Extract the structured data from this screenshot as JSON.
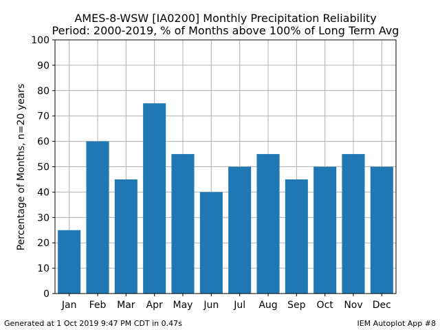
{
  "chart_data": {
    "type": "bar",
    "title": "AMES-8-WSW [IA0200] Monthly Precipitation Reliability",
    "subtitle": "Period: 2000-2019, % of Months above 100% of Long Term Avg",
    "xlabel": "",
    "ylabel": "Percentage of Months, n=20 years",
    "categories": [
      "Jan",
      "Feb",
      "Mar",
      "Apr",
      "May",
      "Jun",
      "Jul",
      "Aug",
      "Sep",
      "Oct",
      "Nov",
      "Dec"
    ],
    "values": [
      25,
      60,
      45,
      75,
      55,
      40,
      50,
      55,
      45,
      50,
      55,
      50
    ],
    "ylim": [
      0,
      100
    ],
    "yticks": [
      0,
      10,
      20,
      30,
      40,
      50,
      60,
      70,
      80,
      90,
      100
    ],
    "grid": true,
    "bar_color": "#1f77b4"
  },
  "footer": {
    "left": "Generated at 1 Oct 2019 9:47 PM CDT in 0.47s",
    "right": "IEM Autoplot App #8"
  }
}
